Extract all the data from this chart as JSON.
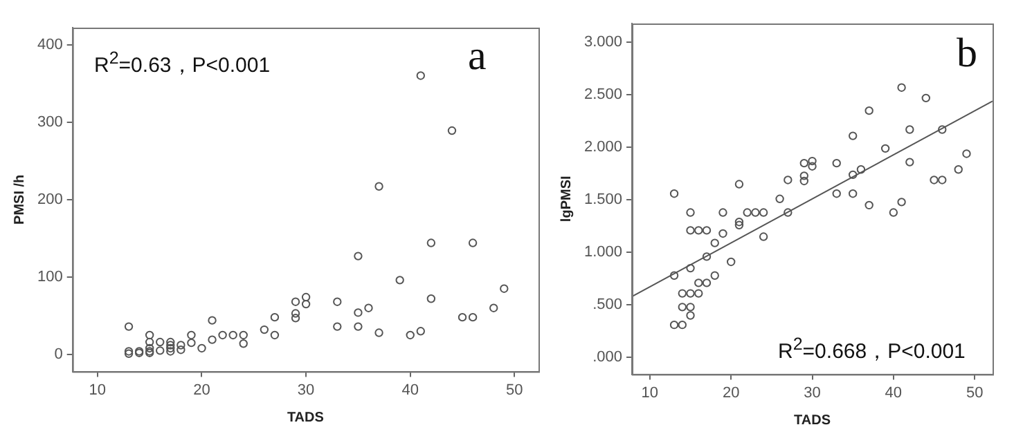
{
  "chart_data": [
    {
      "type": "scatter",
      "xlabel": "TADS",
      "ylabel": "PMSI /h",
      "xlim": [
        7.6,
        52.3
      ],
      "ylim": [
        -22,
        422
      ],
      "xticks": [
        10,
        20,
        30,
        40,
        50
      ],
      "yticks": [
        0,
        100,
        200,
        300,
        400
      ],
      "grid": false,
      "legend": false,
      "marker": "circle",
      "annotations": [
        "R$^{2}$=0.63，P<0.001",
        "a"
      ],
      "series": [
        {
          "color": "#555555",
          "x": [
            13,
            13,
            13,
            14,
            14,
            15,
            15,
            15,
            15,
            15,
            16,
            16,
            17,
            17,
            17,
            17,
            18,
            18,
            19,
            19,
            20,
            21,
            21,
            22,
            23,
            24,
            24,
            26,
            27,
            27,
            29,
            29,
            29,
            30,
            30,
            33,
            33,
            35,
            35,
            35,
            36,
            37,
            37,
            39,
            40,
            41,
            41,
            42,
            42,
            44,
            45,
            46,
            46,
            48,
            49
          ],
          "values": [
            36,
            4,
            1,
            2,
            4,
            25,
            16,
            8,
            4,
            2,
            16,
            5,
            16,
            12,
            8,
            4,
            12,
            6,
            25,
            15,
            8,
            44,
            19,
            25,
            25,
            25,
            14,
            32,
            48,
            25,
            68,
            53,
            47,
            74,
            65,
            68,
            36,
            127,
            54,
            36,
            60,
            28,
            217,
            96,
            25,
            30,
            360,
            144,
            72,
            289,
            48,
            144,
            48,
            60,
            85
          ]
        }
      ]
    },
    {
      "type": "scatter",
      "xlabel": "TADS",
      "ylabel": "lgPMSI",
      "xlim": [
        7.8,
        52.2
      ],
      "ylim": [
        -0.16,
        3.18
      ],
      "xticks": [
        10,
        20,
        30,
        40,
        50
      ],
      "yticks": [
        {
          "value": 0,
          "label": ".000"
        },
        {
          "value": 0.5,
          "label": ".500"
        },
        {
          "value": 1,
          "label": "1.000"
        },
        {
          "value": 1.5,
          "label": "1.500"
        },
        {
          "value": 2,
          "label": "2.000"
        },
        {
          "value": 2.5,
          "label": "2.500"
        },
        {
          "value": 3,
          "label": "3.000"
        }
      ],
      "grid": false,
      "legend": false,
      "marker": "circle",
      "annotations": [
        "b",
        "R$^{2}$=0.668，P<0.001"
      ],
      "series": [
        {
          "color": "#555555",
          "x": [
            13,
            15,
            19,
            21,
            22,
            23,
            24,
            26,
            27,
            27,
            29,
            29,
            29,
            30,
            30,
            33,
            33,
            35,
            35,
            35,
            36,
            37,
            37,
            39,
            40,
            41,
            41,
            42,
            42,
            44,
            45,
            46,
            46,
            48,
            49,
            16,
            15,
            17,
            19,
            18,
            21,
            21,
            24,
            17,
            20,
            13,
            15,
            18,
            16,
            17,
            14,
            15,
            16,
            14,
            15,
            15,
            13,
            14
          ],
          "values": [
            1.56,
            1.38,
            1.38,
            1.65,
            1.38,
            1.38,
            1.38,
            1.51,
            1.69,
            1.38,
            1.85,
            1.73,
            1.68,
            1.87,
            1.82,
            1.85,
            1.56,
            2.11,
            1.74,
            1.56,
            1.79,
            2.35,
            1.45,
            1.99,
            1.38,
            2.57,
            1.48,
            2.17,
            1.86,
            2.47,
            1.69,
            1.69,
            2.17,
            1.79,
            1.94,
            1.21,
            1.21,
            1.21,
            1.18,
            1.09,
            1.29,
            1.26,
            1.15,
            0.96,
            0.91,
            0.78,
            0.85,
            0.78,
            0.71,
            0.71,
            0.61,
            0.61,
            0.61,
            0.48,
            0.48,
            0.4,
            0.31,
            0.31
          ]
        },
        {
          "type": "line",
          "color": "#555555",
          "marker": "none",
          "x": [
            7.8,
            52.2
          ],
          "values": [
            0.58,
            2.44
          ]
        }
      ]
    }
  ]
}
